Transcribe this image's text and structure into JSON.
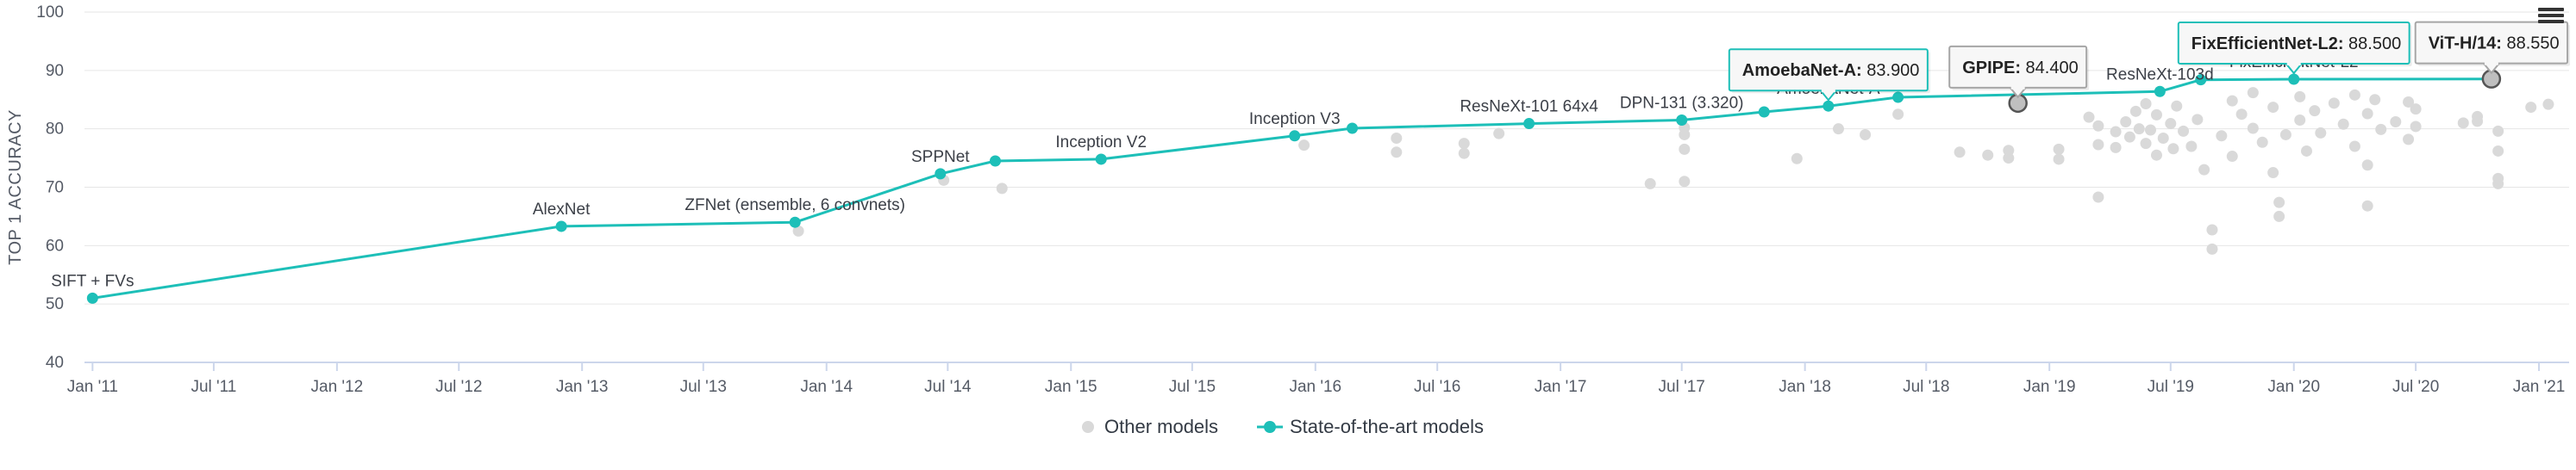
{
  "chart_data": {
    "type": "scatter",
    "ylabel": "TOP 1 ACCURACY",
    "xlabel": "",
    "ylim": [
      40,
      100
    ],
    "yticks": [
      40,
      50,
      60,
      70,
      80,
      90,
      100
    ],
    "xlim": [
      "2010-12-20",
      "2021-02-15"
    ],
    "xticks": [
      {
        "date": "2011-01-01",
        "label": "Jan '11"
      },
      {
        "date": "2011-07-01",
        "label": "Jul '11"
      },
      {
        "date": "2012-01-01",
        "label": "Jan '12"
      },
      {
        "date": "2012-07-01",
        "label": "Jul '12"
      },
      {
        "date": "2013-01-01",
        "label": "Jan '13"
      },
      {
        "date": "2013-07-01",
        "label": "Jul '13"
      },
      {
        "date": "2014-01-01",
        "label": "Jan '14"
      },
      {
        "date": "2014-07-01",
        "label": "Jul '14"
      },
      {
        "date": "2015-01-01",
        "label": "Jan '15"
      },
      {
        "date": "2015-07-01",
        "label": "Jul '15"
      },
      {
        "date": "2016-01-01",
        "label": "Jan '16"
      },
      {
        "date": "2016-07-01",
        "label": "Jul '16"
      },
      {
        "date": "2017-01-01",
        "label": "Jan '17"
      },
      {
        "date": "2017-07-01",
        "label": "Jul '17"
      },
      {
        "date": "2018-01-01",
        "label": "Jan '18"
      },
      {
        "date": "2018-07-01",
        "label": "Jul '18"
      },
      {
        "date": "2019-01-01",
        "label": "Jan '19"
      },
      {
        "date": "2019-07-01",
        "label": "Jul '19"
      },
      {
        "date": "2020-01-01",
        "label": "Jan '20"
      },
      {
        "date": "2020-07-01",
        "label": "Jul '20"
      },
      {
        "date": "2021-01-01",
        "label": "Jan '21"
      }
    ],
    "grid": true,
    "legend_position": "bottom",
    "colors": {
      "sota": "#1dbfb8",
      "other": "#d9d9d9",
      "highlight_marker": "#bfbfbf"
    },
    "series": [
      {
        "name": "State-of-the-art models",
        "points": [
          {
            "x": "2011-01-01",
            "y": 51.0,
            "label": "SIFT + FVs"
          },
          {
            "x": "2012-12-01",
            "y": 63.3,
            "label": "AlexNet"
          },
          {
            "x": "2013-11-15",
            "y": 64.0,
            "label": "ZFNet (ensemble, 6 convnets)"
          },
          {
            "x": "2014-06-20",
            "y": 72.3,
            "label": "SPPNet"
          },
          {
            "x": "2014-09-10",
            "y": 74.5,
            "label": ""
          },
          {
            "x": "2015-02-15",
            "y": 74.8,
            "label": "Inception V2"
          },
          {
            "x": "2015-12-01",
            "y": 78.8,
            "label": "Inception V3"
          },
          {
            "x": "2016-02-25",
            "y": 80.1,
            "label": ""
          },
          {
            "x": "2016-11-15",
            "y": 80.9,
            "label": "ResNeXt-101 64x4"
          },
          {
            "x": "2017-07-01",
            "y": 81.5,
            "label": "DPN-131 (3.320)"
          },
          {
            "x": "2017-11-01",
            "y": 82.9,
            "label": ""
          },
          {
            "x": "2018-02-05",
            "y": 83.9,
            "label": "AmoebaNet-A"
          },
          {
            "x": "2018-05-20",
            "y": 85.4,
            "label": ""
          },
          {
            "x": "2019-06-15",
            "y": 86.4,
            "label": "ResNeXt-103d"
          },
          {
            "x": "2019-08-15",
            "y": 88.4,
            "label": ""
          },
          {
            "x": "2020-01-01",
            "y": 88.5,
            "label": "FixEfficientNet-L2"
          },
          {
            "x": "2020-10-22",
            "y": 88.55,
            "label": ""
          }
        ]
      },
      {
        "name": "Other models",
        "points": [
          {
            "x": "2013-11-20",
            "y": 62.5
          },
          {
            "x": "2014-06-25",
            "y": 71.2
          },
          {
            "x": "2014-09-20",
            "y": 69.8
          },
          {
            "x": "2015-12-15",
            "y": 77.2
          },
          {
            "x": "2016-05-01",
            "y": 78.4
          },
          {
            "x": "2016-05-01",
            "y": 76.0
          },
          {
            "x": "2016-08-10",
            "y": 75.8
          },
          {
            "x": "2016-08-10",
            "y": 77.5
          },
          {
            "x": "2016-10-01",
            "y": 79.2
          },
          {
            "x": "2017-05-15",
            "y": 70.6
          },
          {
            "x": "2017-07-05",
            "y": 71.0
          },
          {
            "x": "2017-07-05",
            "y": 79.0
          },
          {
            "x": "2017-07-05",
            "y": 76.5
          },
          {
            "x": "2017-07-05",
            "y": 80.2
          },
          {
            "x": "2017-12-20",
            "y": 74.9
          },
          {
            "x": "2018-02-20",
            "y": 80.0
          },
          {
            "x": "2018-04-01",
            "y": 79.0
          },
          {
            "x": "2018-05-20",
            "y": 82.5
          },
          {
            "x": "2018-08-20",
            "y": 76.0
          },
          {
            "x": "2018-10-01",
            "y": 75.5
          },
          {
            "x": "2018-11-01",
            "y": 76.3
          },
          {
            "x": "2018-11-01",
            "y": 75.0
          },
          {
            "x": "2019-01-15",
            "y": 76.5
          },
          {
            "x": "2019-01-15",
            "y": 74.8
          },
          {
            "x": "2019-03-01",
            "y": 82.0
          },
          {
            "x": "2019-03-15",
            "y": 80.5
          },
          {
            "x": "2019-03-15",
            "y": 77.3
          },
          {
            "x": "2019-03-15",
            "y": 68.3
          },
          {
            "x": "2019-04-10",
            "y": 79.5
          },
          {
            "x": "2019-04-10",
            "y": 76.8
          },
          {
            "x": "2019-04-25",
            "y": 81.2
          },
          {
            "x": "2019-05-01",
            "y": 78.6
          },
          {
            "x": "2019-05-10",
            "y": 83.0
          },
          {
            "x": "2019-05-15",
            "y": 80.0
          },
          {
            "x": "2019-05-25",
            "y": 77.5
          },
          {
            "x": "2019-05-25",
            "y": 84.3
          },
          {
            "x": "2019-06-01",
            "y": 79.8
          },
          {
            "x": "2019-06-10",
            "y": 82.4
          },
          {
            "x": "2019-06-10",
            "y": 75.5
          },
          {
            "x": "2019-06-20",
            "y": 78.4
          },
          {
            "x": "2019-07-01",
            "y": 80.9
          },
          {
            "x": "2019-07-05",
            "y": 76.6
          },
          {
            "x": "2019-07-10",
            "y": 83.9
          },
          {
            "x": "2019-07-20",
            "y": 79.6
          },
          {
            "x": "2019-08-01",
            "y": 77.0
          },
          {
            "x": "2019-08-10",
            "y": 81.6
          },
          {
            "x": "2019-08-20",
            "y": 73.0
          },
          {
            "x": "2019-09-01",
            "y": 62.7
          },
          {
            "x": "2019-09-01",
            "y": 59.4
          },
          {
            "x": "2019-09-15",
            "y": 78.8
          },
          {
            "x": "2019-10-01",
            "y": 84.8
          },
          {
            "x": "2019-10-01",
            "y": 75.3
          },
          {
            "x": "2019-10-15",
            "y": 82.5
          },
          {
            "x": "2019-11-01",
            "y": 80.1
          },
          {
            "x": "2019-11-01",
            "y": 86.2
          },
          {
            "x": "2019-11-15",
            "y": 77.7
          },
          {
            "x": "2019-12-01",
            "y": 72.5
          },
          {
            "x": "2019-12-01",
            "y": 83.7
          },
          {
            "x": "2019-12-10",
            "y": 67.4
          },
          {
            "x": "2019-12-10",
            "y": 65.0
          },
          {
            "x": "2019-12-20",
            "y": 79.0
          },
          {
            "x": "2020-01-10",
            "y": 81.5
          },
          {
            "x": "2020-01-10",
            "y": 85.5
          },
          {
            "x": "2020-01-20",
            "y": 76.2
          },
          {
            "x": "2020-02-01",
            "y": 83.1
          },
          {
            "x": "2020-02-10",
            "y": 79.3
          },
          {
            "x": "2020-03-01",
            "y": 84.4
          },
          {
            "x": "2020-03-15",
            "y": 80.8
          },
          {
            "x": "2020-04-01",
            "y": 85.8
          },
          {
            "x": "2020-04-01",
            "y": 77.0
          },
          {
            "x": "2020-04-20",
            "y": 82.6
          },
          {
            "x": "2020-04-20",
            "y": 73.8
          },
          {
            "x": "2020-04-20",
            "y": 66.8
          },
          {
            "x": "2020-05-01",
            "y": 85.0
          },
          {
            "x": "2020-05-10",
            "y": 79.9
          },
          {
            "x": "2020-06-01",
            "y": 81.2
          },
          {
            "x": "2020-06-20",
            "y": 84.6
          },
          {
            "x": "2020-06-20",
            "y": 78.2
          },
          {
            "x": "2020-07-01",
            "y": 83.4
          },
          {
            "x": "2020-07-01",
            "y": 80.4
          },
          {
            "x": "2020-09-10",
            "y": 81.0
          },
          {
            "x": "2020-10-01",
            "y": 82.1
          },
          {
            "x": "2020-10-01",
            "y": 81.3
          },
          {
            "x": "2020-11-01",
            "y": 79.6
          },
          {
            "x": "2020-11-01",
            "y": 76.2
          },
          {
            "x": "2020-11-01",
            "y": 70.6
          },
          {
            "x": "2020-11-01",
            "y": 71.5
          },
          {
            "x": "2020-12-20",
            "y": 83.7
          },
          {
            "x": "2021-01-15",
            "y": 84.2
          }
        ]
      }
    ],
    "highlighted": [
      {
        "name": "GPIPE",
        "x": "2018-11-15",
        "y": 84.4,
        "value_text": "84.400",
        "style": "gray"
      },
      {
        "name": "ViT-H/14",
        "x": "2020-10-22",
        "y": 88.55,
        "value_text": "88.550",
        "style": "gray"
      }
    ],
    "tooltips": [
      {
        "name": "AmoebaNet-A:",
        "value": "83.900",
        "x": "2018-02-05",
        "y": 83.9,
        "style": "teal"
      },
      {
        "name": "GPIPE:",
        "value": "84.400",
        "x": "2018-11-15",
        "y": 84.4,
        "style": "gray"
      },
      {
        "name": "FixEfficientNet-L2:",
        "value": "88.500",
        "x": "2020-01-01",
        "y": 88.5,
        "style": "teal"
      },
      {
        "name": "ViT-H/14:",
        "value": "88.550",
        "x": "2020-10-22",
        "y": 88.55,
        "style": "gray"
      }
    ],
    "legend": [
      {
        "key": "other",
        "label": "Other models"
      },
      {
        "key": "sota",
        "label": "State-of-the-art models"
      }
    ]
  }
}
